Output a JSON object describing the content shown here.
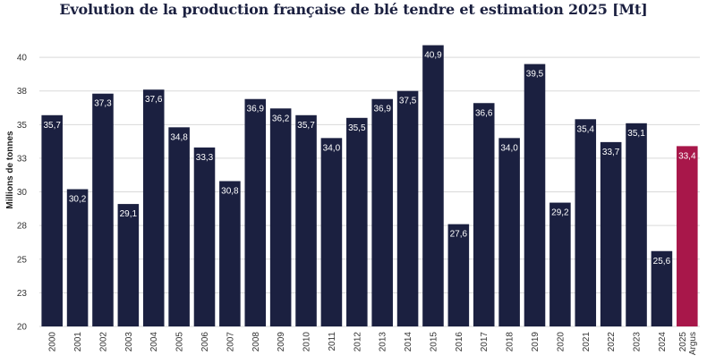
{
  "chart_data": {
    "type": "bar",
    "title": "Evolution de la production française de blé tendre et estimation 2025 [Mt]",
    "xlabel": "",
    "ylabel": "Millions de tonnes",
    "ylim": [
      20,
      42
    ],
    "y_ticks": [
      20,
      23,
      25,
      28,
      30,
      33,
      35,
      38,
      40
    ],
    "y_tick_values": [
      20,
      22.5,
      25,
      27.5,
      30,
      32.5,
      35,
      37.5,
      40
    ],
    "grid": true,
    "categories": [
      "2000",
      "2001",
      "2002",
      "2003",
      "2004",
      "2005",
      "2006",
      "2007",
      "2008",
      "2009",
      "2010",
      "2011",
      "2012",
      "2013",
      "2014",
      "2015",
      "2016",
      "2017",
      "2018",
      "2019",
      "2020",
      "2021",
      "2022",
      "2023",
      "2024",
      "2025 Argus"
    ],
    "values": [
      35.7,
      30.2,
      37.3,
      29.1,
      37.6,
      34.8,
      33.3,
      30.8,
      36.9,
      36.2,
      35.7,
      34.0,
      35.5,
      36.9,
      37.5,
      40.9,
      27.6,
      36.6,
      34.0,
      39.5,
      29.2,
      35.4,
      33.7,
      35.1,
      25.6,
      33.4
    ],
    "value_labels": [
      "35,7",
      "30,2",
      "37,3",
      "29,1",
      "37,6",
      "34,8",
      "33,3",
      "30,8",
      "36,9",
      "36,2",
      "35,7",
      "34,0",
      "35,5",
      "36,9",
      "37,5",
      "40,9",
      "27,6",
      "36,6",
      "34,0",
      "39,5",
      "29,2",
      "35,4",
      "33,7",
      "35,1",
      "25,6",
      "33,4"
    ],
    "colors": {
      "historical": "#1b2040",
      "estimate": "#a8174a"
    },
    "estimate_index": 25
  }
}
